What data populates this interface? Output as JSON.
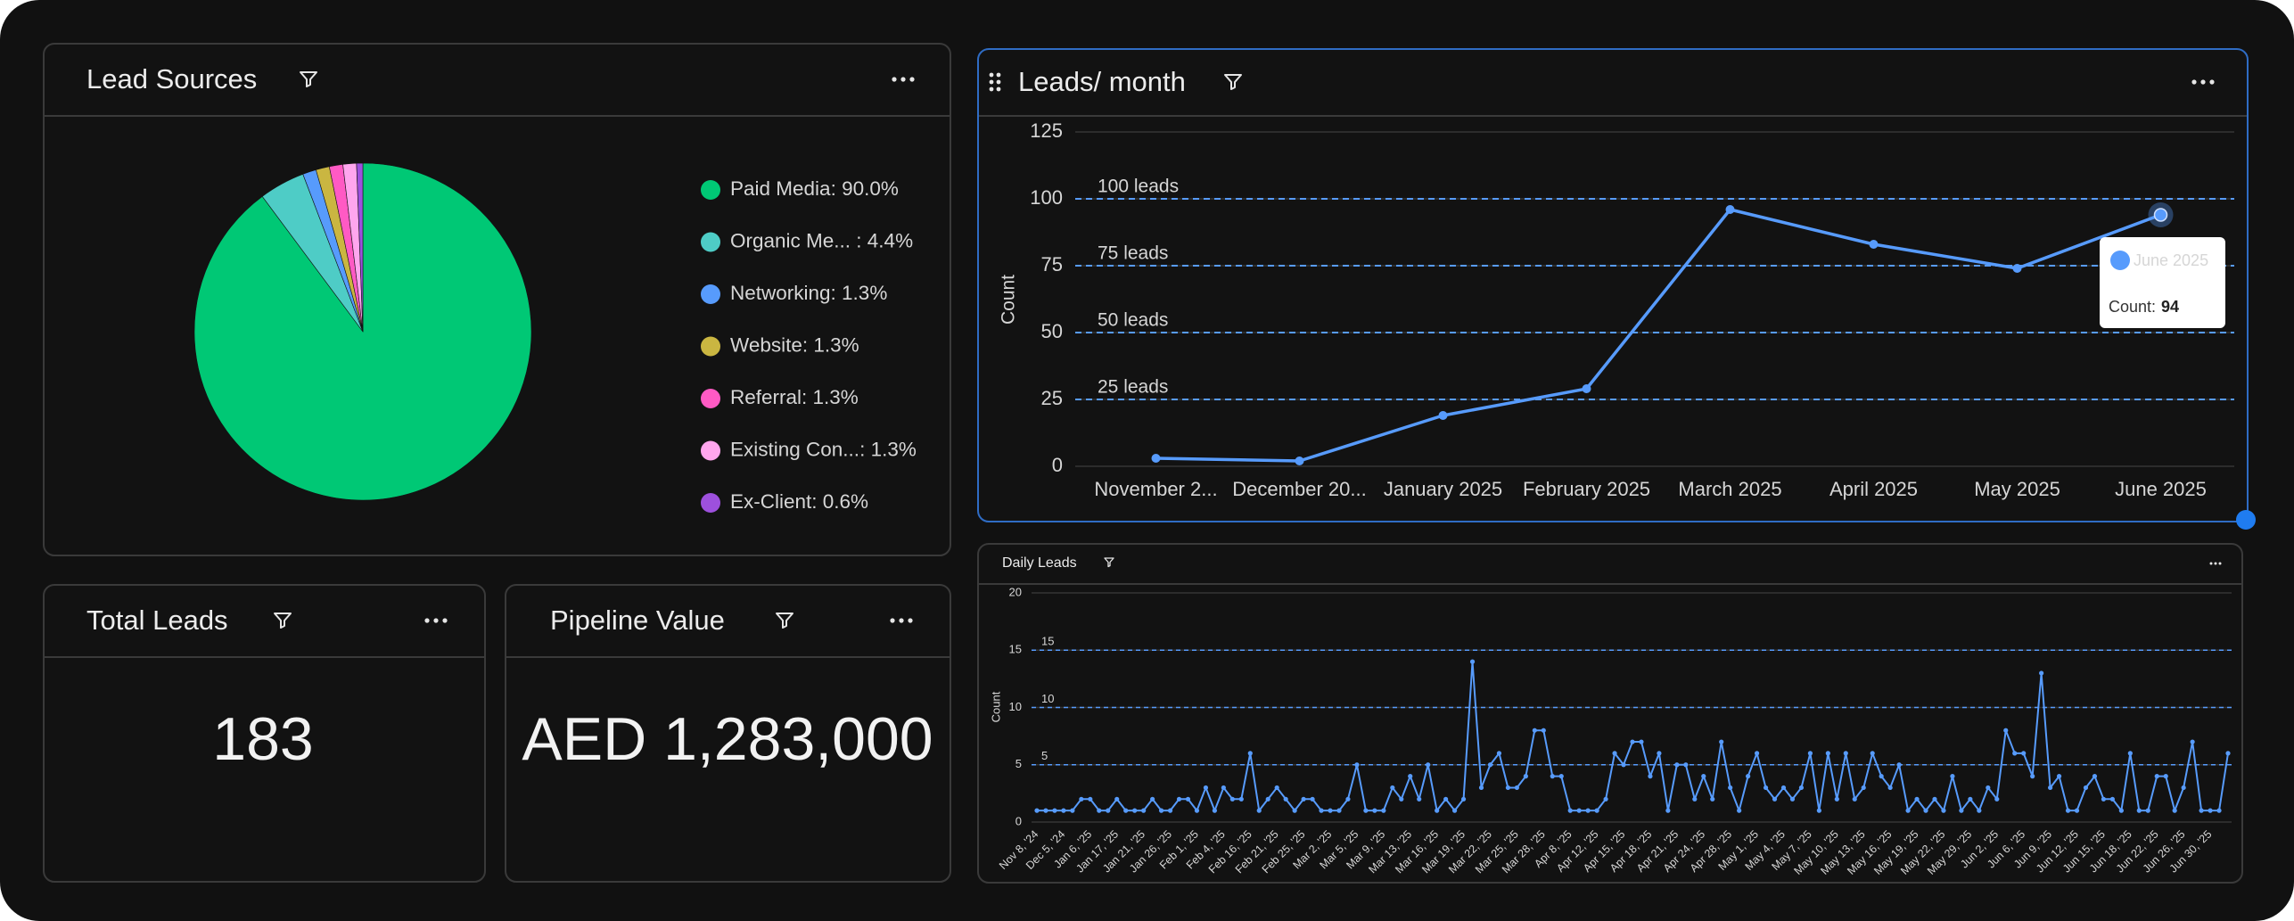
{
  "chart_data": [
    {
      "type": "pie",
      "title": "Lead Sources",
      "categories": [
        "Paid Media: 90.0%",
        "Organic Me...  : 4.4%",
        "Networking: 1.3%",
        "Website: 1.3%",
        "Referral: 1.3%",
        "Existing Con...: 1.3%",
        "Ex-Client: 0.6%"
      ],
      "values": [
        90.0,
        4.4,
        1.3,
        1.3,
        1.3,
        1.3,
        0.6
      ],
      "colors": [
        "#00c875",
        "#4eccc6",
        "#579bfc",
        "#cab641",
        "#ff5ac4",
        "#ffa6ee",
        "#9d50dd"
      ]
    },
    {
      "type": "line",
      "title": "Leads/ month",
      "y_label": "Count",
      "categories": [
        "November 2...",
        "December 20...",
        "January 2025",
        "February 2025",
        "March 2025",
        "April 2025",
        "May 2025",
        "June 2025"
      ],
      "values": [
        3,
        2,
        19,
        29,
        96,
        83,
        74,
        94
      ],
      "color": "#579bfc",
      "ylim": [
        0,
        125
      ],
      "yticks": [
        0,
        25,
        50,
        75,
        100,
        125
      ],
      "grid": true,
      "reference_lines": [
        {
          "value": 100,
          "label": "100 leads"
        },
        {
          "value": 75,
          "label": "75 leads"
        },
        {
          "value": 50,
          "label": "50 leads"
        },
        {
          "value": 25,
          "label": "25 leads"
        }
      ],
      "tooltip_label": "Count:"
    },
    {
      "type": "line",
      "title": "Daily Leads",
      "y_label": "Count",
      "categories": [
        "Nov 8, '24",
        null,
        null,
        "Dec 5, '24",
        null,
        null,
        "Jan 6, '25",
        null,
        null,
        "Jan 17, '25",
        null,
        null,
        "Jan 21, '25",
        null,
        null,
        "Jan 26, '25",
        null,
        null,
        "Feb 1, '25",
        null,
        null,
        "Feb 4, '25",
        null,
        null,
        "Feb 16, '25",
        null,
        null,
        "Feb 21, '25",
        null,
        null,
        "Feb 25, '25",
        null,
        null,
        "Mar 2, '25",
        null,
        null,
        "Mar 5, '25",
        null,
        null,
        "Mar 9, '25",
        null,
        null,
        "Mar 13, '25",
        null,
        null,
        "Mar 16, '25",
        null,
        null,
        "Mar 19, '25",
        null,
        null,
        "Mar 22, '25",
        null,
        null,
        "Mar 25, '25",
        null,
        null,
        "Mar 28, '25",
        null,
        null,
        "Apr 8, '25",
        null,
        null,
        "Apr 12, '25",
        null,
        null,
        "Apr 15, '25",
        null,
        null,
        "Apr 18, '25",
        null,
        null,
        "Apr 21, '25",
        null,
        null,
        "Apr 24, '25",
        null,
        null,
        "Apr 28, '25",
        null,
        null,
        "May 1, '25",
        null,
        null,
        "May 4, '25",
        null,
        null,
        "May 7, '25",
        null,
        null,
        "May 10, '25",
        null,
        null,
        "May 13, '25",
        null,
        null,
        "May 16, '25",
        null,
        null,
        "May 19, '25",
        null,
        null,
        "May 22, '25",
        null,
        null,
        "May 29, '25",
        null,
        null,
        "Jun 2, '25",
        null,
        null,
        "Jun 6, '25",
        null,
        null,
        "Jun 9, '25",
        null,
        null,
        "Jun 12, '25",
        null,
        null,
        "Jun 15, '25",
        null,
        null,
        "Jun 18, '25",
        null,
        null,
        "Jun 22, '25",
        null,
        null,
        "Jun 26, '25",
        null,
        null,
        "Jun 30, '25",
        null,
        null
      ],
      "values": [
        1,
        1,
        1,
        1,
        1,
        2,
        2,
        1,
        1,
        2,
        1,
        1,
        1,
        2,
        1,
        1,
        2,
        2,
        1,
        3,
        1,
        3,
        2,
        2,
        6,
        1,
        2,
        3,
        2,
        1,
        2,
        2,
        1,
        1,
        1,
        2,
        5,
        1,
        1,
        1,
        3,
        2,
        4,
        2,
        5,
        1,
        2,
        1,
        2,
        14,
        3,
        5,
        6,
        3,
        3,
        4,
        8,
        8,
        4,
        4,
        1,
        1,
        1,
        1,
        2,
        6,
        5,
        7,
        7,
        4,
        6,
        1,
        5,
        5,
        2,
        4,
        2,
        7,
        3,
        1,
        4,
        6,
        3,
        2,
        3,
        2,
        3,
        6,
        1,
        6,
        2,
        6,
        2,
        3,
        6,
        4,
        3,
        5,
        1,
        2,
        1,
        2,
        1,
        4,
        1,
        2,
        1,
        3,
        2,
        8,
        6,
        6,
        4,
        13,
        3,
        4,
        1,
        1,
        3,
        4,
        2,
        2,
        1,
        6,
        1,
        1,
        4,
        4,
        1,
        3,
        7,
        1,
        1,
        1,
        6
      ],
      "color": "#579bfc",
      "ylim": [
        0,
        20
      ],
      "yticks": [
        0,
        5,
        10,
        15,
        20
      ],
      "grid": true,
      "reference_lines": [
        15,
        10,
        5
      ]
    }
  ],
  "cards": [
    {
      "title": "Total Leads",
      "value": 183
    },
    {
      "title": "Pipeline Value",
      "value": 1283000,
      "value_label": "AED 1,283,000"
    }
  ]
}
